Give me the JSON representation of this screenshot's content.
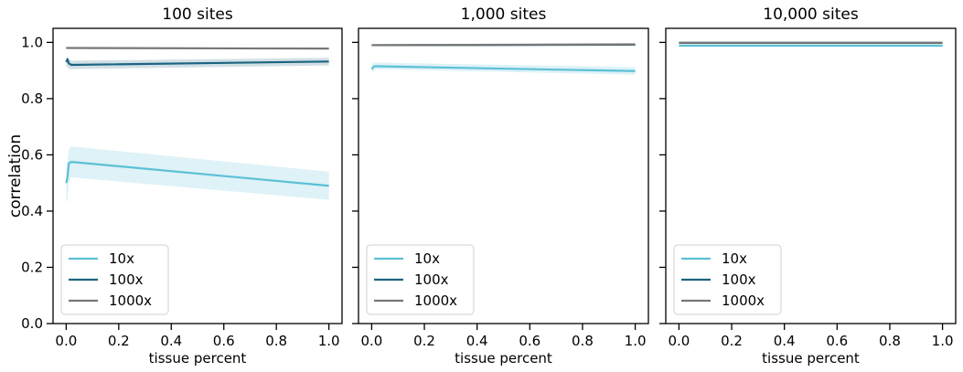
{
  "chart_data": [
    {
      "type": "line",
      "title": "100 sites",
      "xlabel": "tissue percent",
      "ylabel": "correlation",
      "xlim": [
        -0.05,
        1.05
      ],
      "ylim": [
        0,
        1.05
      ],
      "xticks": [
        0.0,
        0.2,
        0.4,
        0.6,
        0.8,
        1.0
      ],
      "xtick_labels": [
        "0.0",
        "0.2",
        "0.4",
        "0.6",
        "0.8",
        "1.0"
      ],
      "yticks": [
        0.0,
        0.2,
        0.4,
        0.6,
        0.8,
        1.0
      ],
      "ytick_labels": [
        "0.0",
        "0.2",
        "0.4",
        "0.6",
        "0.8",
        "1.0"
      ],
      "legend_position": "lower-left",
      "grid": false,
      "series": [
        {
          "name": "10x",
          "color": "#5bc0d6",
          "x": [
            0.0,
            0.005,
            0.01,
            0.02,
            1.0
          ],
          "y": [
            0.5,
            0.52,
            0.57,
            0.575,
            0.49
          ],
          "ci_low": [
            0.43,
            0.44,
            0.5,
            0.52,
            0.44
          ],
          "ci_high": [
            0.55,
            0.58,
            0.62,
            0.63,
            0.54
          ]
        },
        {
          "name": "100x",
          "color": "#1c6480",
          "x": [
            0.0,
            0.005,
            0.01,
            0.02,
            1.0
          ],
          "y": [
            0.93,
            0.94,
            0.925,
            0.92,
            0.932
          ],
          "ci_low": [
            0.91,
            0.915,
            0.905,
            0.905,
            0.918
          ],
          "ci_high": [
            0.945,
            0.95,
            0.94,
            0.935,
            0.945
          ]
        },
        {
          "name": "1000x",
          "color": "#777777",
          "x": [
            0.0,
            0.01,
            1.0
          ],
          "y": [
            0.98,
            0.98,
            0.978
          ],
          "ci_low": [
            0.977,
            0.977,
            0.975
          ],
          "ci_high": [
            0.983,
            0.983,
            0.981
          ]
        }
      ]
    },
    {
      "type": "line",
      "title": "1,000 sites",
      "xlabel": "tissue percent",
      "ylabel": "",
      "xlim": [
        -0.05,
        1.05
      ],
      "ylim": [
        0,
        1.05
      ],
      "xticks": [
        0.0,
        0.2,
        0.4,
        0.6,
        0.8,
        1.0
      ],
      "xtick_labels": [
        "0.0",
        "0.2",
        "0.4",
        "0.6",
        "0.8",
        "1.0"
      ],
      "yticks": [
        0.0,
        0.2,
        0.4,
        0.6,
        0.8,
        1.0
      ],
      "ytick_labels": [],
      "legend_position": "lower-left",
      "grid": false,
      "series": [
        {
          "name": "10x",
          "color": "#5bc0d6",
          "x": [
            0.0,
            0.005,
            0.01,
            0.02,
            1.0
          ],
          "y": [
            0.905,
            0.91,
            0.915,
            0.915,
            0.898
          ],
          "ci_low": [
            0.89,
            0.895,
            0.9,
            0.905,
            0.885
          ],
          "ci_high": [
            0.925,
            0.925,
            0.928,
            0.928,
            0.912
          ]
        },
        {
          "name": "100x",
          "color": "#1c6480",
          "x": [
            0.0,
            1.0
          ],
          "y": [
            0.99,
            0.992
          ],
          "ci_low": [
            0.988,
            0.99
          ],
          "ci_high": [
            0.992,
            0.994
          ]
        },
        {
          "name": "1000x",
          "color": "#777777",
          "x": [
            0.0,
            1.0
          ],
          "y": [
            0.99,
            0.993
          ],
          "ci_low": [
            0.989,
            0.991
          ],
          "ci_high": [
            0.991,
            0.995
          ]
        }
      ]
    },
    {
      "type": "line",
      "title": "10,000 sites",
      "xlabel": "tissue percent",
      "ylabel": "",
      "xlim": [
        -0.05,
        1.05
      ],
      "ylim": [
        0,
        1.05
      ],
      "xticks": [
        0.0,
        0.2,
        0.4,
        0.6,
        0.8,
        1.0
      ],
      "xtick_labels": [
        "0.0",
        "0.2",
        "0.4",
        "0.6",
        "0.8",
        "1.0"
      ],
      "yticks": [
        0.0,
        0.2,
        0.4,
        0.6,
        0.8,
        1.0
      ],
      "ytick_labels": [],
      "legend_position": "lower-left",
      "grid": false,
      "series": [
        {
          "name": "10x",
          "color": "#5bc0d6",
          "x": [
            0.0,
            1.0
          ],
          "y": [
            0.988,
            0.988
          ],
          "ci_low": [
            0.985,
            0.985
          ],
          "ci_high": [
            0.991,
            0.991
          ]
        },
        {
          "name": "100x",
          "color": "#1c6480",
          "x": [
            0.0,
            1.0
          ],
          "y": [
            0.998,
            0.998
          ],
          "ci_low": [
            0.997,
            0.997
          ],
          "ci_high": [
            0.999,
            0.999
          ]
        },
        {
          "name": "1000x",
          "color": "#777777",
          "x": [
            0.0,
            1.0
          ],
          "y": [
            0.999,
            0.999
          ],
          "ci_low": [
            0.998,
            0.998
          ],
          "ci_high": [
            1.0,
            1.0
          ]
        }
      ]
    }
  ]
}
